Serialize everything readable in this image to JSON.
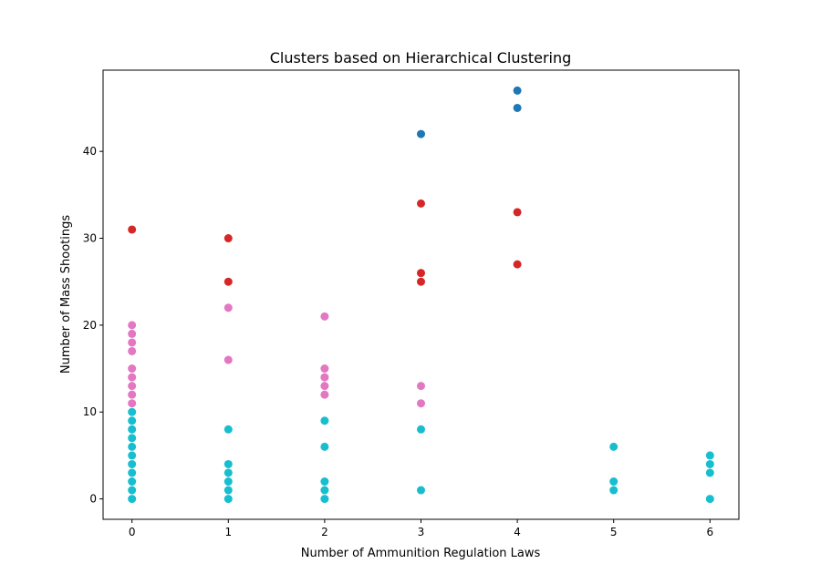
{
  "chart_data": {
    "type": "scatter",
    "title": "Clusters based on Hierarchical Clustering",
    "xlabel": "Number of Ammunition Regulation Laws",
    "ylabel": "Number of Mass Shootings",
    "xlim": [
      -0.3,
      6.3
    ],
    "ylim": [
      -2.35,
      49.35
    ],
    "xticks": [
      0,
      1,
      2,
      3,
      4,
      5,
      6
    ],
    "yticks": [
      0,
      10,
      20,
      30,
      40
    ],
    "grid": false,
    "legend": "none",
    "series": [
      {
        "color": "#1f77b4",
        "points": [
          [
            3,
            42
          ],
          [
            4,
            47
          ],
          [
            4,
            45
          ]
        ]
      },
      {
        "color": "#d62728",
        "points": [
          [
            0,
            31
          ],
          [
            1,
            30
          ],
          [
            1,
            25
          ],
          [
            3,
            34
          ],
          [
            3,
            26
          ],
          [
            3,
            25
          ],
          [
            4,
            33
          ],
          [
            4,
            27
          ]
        ]
      },
      {
        "color": "#e377c2",
        "points": [
          [
            0,
            20
          ],
          [
            0,
            19
          ],
          [
            0,
            18
          ],
          [
            0,
            17
          ],
          [
            0,
            15
          ],
          [
            0,
            14
          ],
          [
            0,
            13
          ],
          [
            0,
            12
          ],
          [
            0,
            11
          ],
          [
            1,
            22
          ],
          [
            1,
            16
          ],
          [
            2,
            21
          ],
          [
            2,
            15
          ],
          [
            2,
            14
          ],
          [
            2,
            13
          ],
          [
            2,
            12
          ],
          [
            3,
            13
          ],
          [
            3,
            11
          ]
        ]
      },
      {
        "color": "#17becf",
        "points": [
          [
            0,
            10
          ],
          [
            0,
            9
          ],
          [
            0,
            8
          ],
          [
            0,
            7
          ],
          [
            0,
            6
          ],
          [
            0,
            5
          ],
          [
            0,
            4
          ],
          [
            0,
            3
          ],
          [
            0,
            2
          ],
          [
            0,
            1
          ],
          [
            0,
            0
          ],
          [
            1,
            8
          ],
          [
            1,
            4
          ],
          [
            1,
            3
          ],
          [
            1,
            2
          ],
          [
            1,
            1
          ],
          [
            1,
            0
          ],
          [
            2,
            9
          ],
          [
            2,
            6
          ],
          [
            2,
            2
          ],
          [
            2,
            1
          ],
          [
            2,
            0
          ],
          [
            3,
            8
          ],
          [
            3,
            1
          ],
          [
            5,
            6
          ],
          [
            5,
            2
          ],
          [
            5,
            1
          ],
          [
            6,
            5
          ],
          [
            6,
            4
          ],
          [
            6,
            3
          ],
          [
            6,
            0
          ]
        ]
      }
    ]
  }
}
